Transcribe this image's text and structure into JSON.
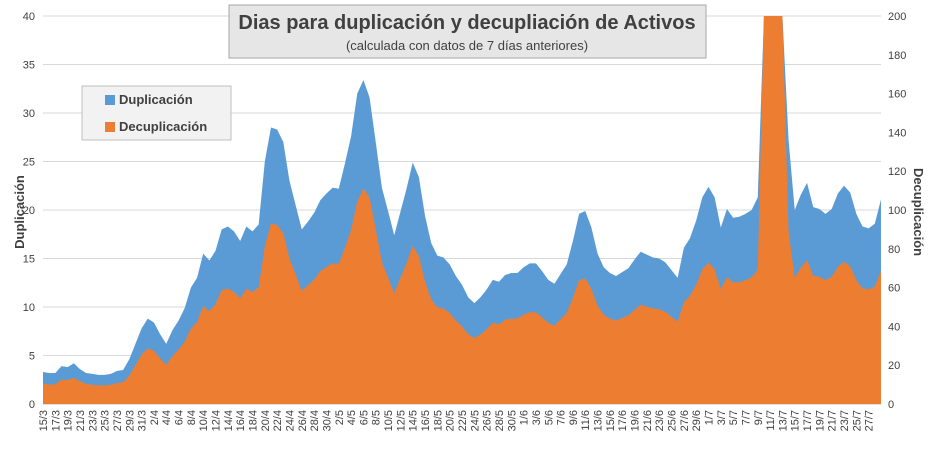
{
  "chart_data": {
    "type": "area",
    "title": "Dias para duplicación y decupliación de Activos",
    "subtitle": "(calculada con datos de 7 días anteriores)",
    "ylabel": "Duplicación",
    "y2label": "Decuplicación",
    "ylim": [
      0,
      40
    ],
    "y2lim": [
      0,
      200
    ],
    "y_ticks": [
      0,
      5,
      10,
      15,
      20,
      25,
      30,
      35,
      40
    ],
    "y2_ticks": [
      0,
      20,
      40,
      60,
      80,
      100,
      120,
      140,
      160,
      180,
      200
    ],
    "grid": true,
    "legend_position": "top-left",
    "start_date": "15/3",
    "x_labels": [
      "15/3",
      "17/3",
      "19/3",
      "21/3",
      "23/3",
      "25/3",
      "27/3",
      "29/3",
      "31/3",
      "2/4",
      "4/4",
      "6/4",
      "8/4",
      "10/4",
      "12/4",
      "14/4",
      "16/4",
      "18/4",
      "20/4",
      "22/4",
      "24/4",
      "26/4",
      "28/4",
      "30/4",
      "2/5",
      "4/5",
      "6/5",
      "8/5",
      "10/5",
      "12/5",
      "14/5",
      "16/5",
      "18/5",
      "20/5",
      "22/5",
      "24/5",
      "26/5",
      "28/5",
      "30/5",
      "1/6",
      "3/6",
      "5/6",
      "7/6",
      "9/6",
      "11/6",
      "13/6",
      "15/6",
      "17/6",
      "19/6",
      "21/6",
      "23/6",
      "25/6",
      "27/6",
      "29/6",
      "1/7",
      "3/7",
      "5/7",
      "7/7",
      "9/7",
      "11/7",
      "13/7",
      "15/7",
      "17/7",
      "19/7",
      "21/7",
      "23/7",
      "25/7",
      "27/7"
    ],
    "series": [
      {
        "name": "Duplicación",
        "color": "#5B9BD5",
        "axis": "left",
        "values": [
          3.3,
          3.2,
          3.2,
          3.9,
          3.8,
          4.2,
          3.6,
          3.2,
          3.1,
          3.0,
          3.0,
          3.1,
          3.4,
          3.5,
          4.6,
          6.2,
          7.8,
          8.8,
          8.4,
          7.2,
          6.2,
          7.6,
          8.6,
          9.9,
          12.0,
          13.0,
          15.5,
          14.8,
          15.8,
          18.0,
          18.3,
          17.8,
          16.8,
          18.3,
          17.8,
          18.5,
          25.0,
          28.5,
          28.3,
          27.0,
          23.0,
          20.5,
          18.0,
          18.8,
          19.7,
          21.0,
          21.7,
          22.3,
          22.2,
          24.8,
          27.6,
          32.0,
          33.4,
          31.6,
          27.0,
          22.3,
          19.9,
          17.4,
          19.8,
          22.2,
          24.9,
          23.4,
          19.4,
          16.6,
          15.3,
          15.1,
          14.4,
          13.2,
          12.3,
          11.0,
          10.4,
          11.0,
          11.8,
          12.8,
          12.6,
          13.3,
          13.5,
          13.5,
          14.1,
          14.5,
          14.5,
          13.7,
          12.8,
          12.4,
          13.4,
          14.4,
          16.8,
          19.6,
          19.9,
          18.2,
          15.5,
          14.1,
          13.5,
          13.2,
          13.6,
          14.0,
          14.9,
          15.7,
          15.4,
          15.1,
          15.0,
          14.6,
          13.8,
          13.0,
          16.1,
          17.1,
          18.9,
          21.3,
          22.4,
          21.3,
          18.2,
          20.1,
          19.2,
          19.3,
          19.6,
          20.0,
          21.3,
          41.0,
          41.0,
          41.0,
          41.0,
          27.2,
          20.0,
          21.6,
          22.8,
          20.3,
          20.1,
          19.6,
          20.1,
          21.7,
          22.5,
          21.8,
          19.6,
          18.3,
          18.1,
          18.6,
          21.1
        ]
      },
      {
        "name": "Decuplicación",
        "color": "#ED7D31",
        "axis": "right",
        "values": [
          10.5,
          10.0,
          10.2,
          12.5,
          12.4,
          13.4,
          11.7,
          10.4,
          9.9,
          9.6,
          9.6,
          9.9,
          10.8,
          11.2,
          14.6,
          20.0,
          25.5,
          28.6,
          27.5,
          23.5,
          20.2,
          24.7,
          28.0,
          32.2,
          38.9,
          42.2,
          50.4,
          47.9,
          51.5,
          58.7,
          59.5,
          57.8,
          54.5,
          59.4,
          57.8,
          60.2,
          81.3,
          93.1,
          92.3,
          88.0,
          75.0,
          66.9,
          58.4,
          61.2,
          64.1,
          68.5,
          70.5,
          72.5,
          72.2,
          80.5,
          89.8,
          104.3,
          111.0,
          106.5,
          90.0,
          73.0,
          65.0,
          57.0,
          65.0,
          72.5,
          81.6,
          76.2,
          63.1,
          54.0,
          49.8,
          49.2,
          46.9,
          43.0,
          40.0,
          36.0,
          34.0,
          35.8,
          38.5,
          41.9,
          41.0,
          43.4,
          44.0,
          44.0,
          46.0,
          47.3,
          47.3,
          44.6,
          41.8,
          40.4,
          43.7,
          47.0,
          54.8,
          63.8,
          64.8,
          59.3,
          50.5,
          46.0,
          44.0,
          43.0,
          44.3,
          45.7,
          48.5,
          51.1,
          50.2,
          49.2,
          48.9,
          47.5,
          45.0,
          42.4,
          52.4,
          55.8,
          61.5,
          69.3,
          72.9,
          69.4,
          59.3,
          65.4,
          62.6,
          62.8,
          63.8,
          65.2,
          69.3,
          205.0,
          205.0,
          205.0,
          205.0,
          88.7,
          65.2,
          70.3,
          74.2,
          66.1,
          65.5,
          63.9,
          65.5,
          70.7,
          73.3,
          71.0,
          63.8,
          59.6,
          59.0,
          60.6,
          68.7
        ]
      }
    ]
  }
}
